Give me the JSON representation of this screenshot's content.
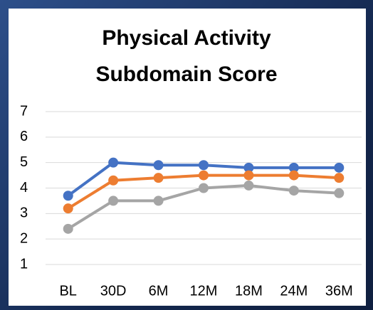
{
  "chart_data": {
    "type": "line",
    "title": "Physical Activity Subdomain Score",
    "categories": [
      "BL",
      "30D",
      "6M",
      "12M",
      "18M",
      "24M",
      "36M"
    ],
    "series": [
      {
        "color": "#4472c4",
        "values": [
          3.7,
          5.0,
          4.9,
          4.9,
          4.8,
          4.8,
          4.8
        ]
      },
      {
        "color": "#ed7d31",
        "values": [
          3.2,
          4.3,
          4.4,
          4.5,
          4.5,
          4.5,
          4.4
        ]
      },
      {
        "color": "#a5a5a5",
        "values": [
          2.4,
          3.5,
          3.5,
          4.0,
          4.1,
          3.9,
          3.8
        ]
      }
    ],
    "ylim": [
      1,
      7
    ],
    "yticks": [
      1,
      2,
      3,
      4,
      5,
      6,
      7
    ],
    "grid": true
  }
}
